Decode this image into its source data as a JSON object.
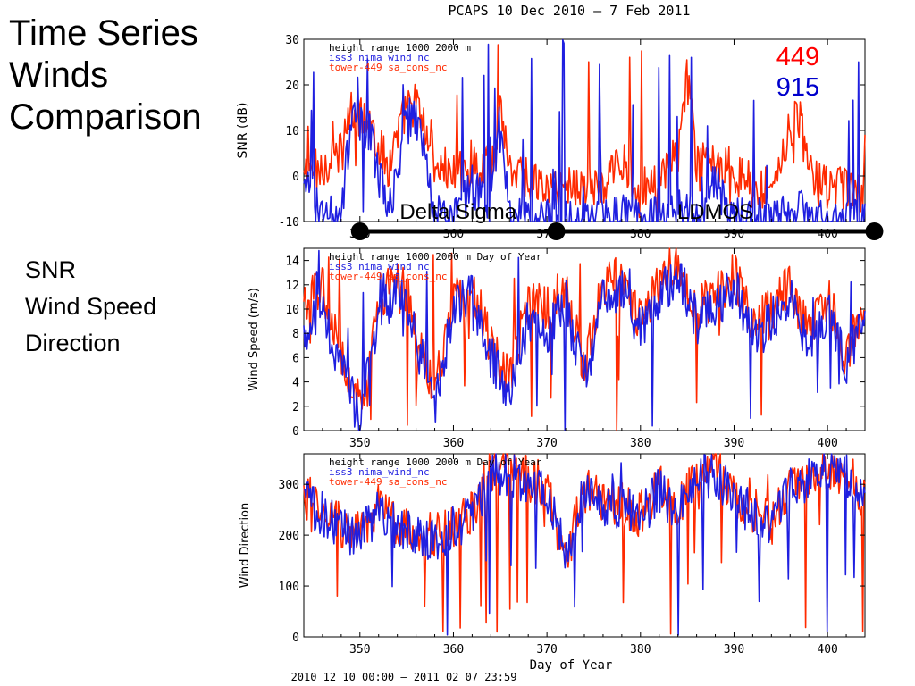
{
  "slide": {
    "title_lines": [
      "Time Series",
      "Winds",
      "Comparison"
    ],
    "side_lines": [
      "SNR",
      "Wind Speed",
      "Direction"
    ]
  },
  "figure": {
    "title": "PCAPS 10 Dec 2010 —  7 Feb 2011",
    "footer": "2010 12 10 00:00 — 2011 02 07 23:59",
    "system_labels": [
      {
        "text": "449",
        "color": "#ff0000"
      },
      {
        "text": "915",
        "color": "#0000cc"
      }
    ],
    "periods": [
      {
        "label": "Delta Sigma",
        "start": 350,
        "end": 371
      },
      {
        "label": "LDMOS",
        "start": 371,
        "end": 405
      }
    ]
  },
  "colors": {
    "series_449": "#ff2a00",
    "series_915": "#1f1fe0",
    "axis": "#000000"
  },
  "chart_data": [
    {
      "type": "line",
      "panel": "snr",
      "title": "PCAPS 10 Dec 2010 —  7 Feb 2011",
      "xlabel": "Day of Year",
      "ylabel": "SNR (dB)",
      "xlim": [
        344,
        404
      ],
      "ylim": [
        -10,
        30
      ],
      "xticks": [
        350,
        360,
        370,
        380,
        390,
        400
      ],
      "yticks": [
        -10,
        0,
        10,
        20,
        30
      ],
      "annotations": [
        "height range 1000 2000 m",
        "iss3 nima_wind_nc",
        "tower-449 sa_cons_nc"
      ],
      "series": [
        {
          "name": "tower-449 sa_cons_nc",
          "color": "#ff2a00",
          "x": [
            344,
            346,
            348,
            349,
            351,
            353,
            355,
            356,
            358,
            360,
            362,
            364,
            365,
            366,
            368,
            370,
            372,
            374,
            376,
            378,
            380,
            382,
            384,
            385,
            386,
            388,
            390,
            392,
            394,
            396,
            397,
            398,
            400,
            402,
            404
          ],
          "y": [
            0,
            2,
            5,
            14,
            12,
            2,
            15,
            16,
            3,
            0,
            3,
            1,
            16,
            2,
            0,
            -3,
            -2,
            -2,
            -3,
            4,
            -3,
            -2,
            5,
            22,
            2,
            4,
            1,
            -3,
            -2,
            10,
            13,
            1,
            -3,
            -3,
            -4
          ]
        },
        {
          "name": "iss3 nima_wind_nc",
          "color": "#1f1fe0",
          "x": [
            344,
            346,
            348,
            349,
            351,
            353,
            355,
            356,
            358,
            360,
            362,
            364,
            365,
            366,
            368,
            370,
            372,
            374,
            376,
            378,
            380,
            382,
            384,
            385,
            386,
            388,
            390,
            392,
            394,
            396,
            397,
            398,
            400,
            402,
            404
          ],
          "y": [
            -3,
            -8,
            -9,
            12,
            10,
            -9,
            12,
            14,
            -8,
            -10,
            -2,
            -9,
            14,
            -9,
            -10,
            -10,
            -9,
            -10,
            -10,
            -8,
            -10,
            -9,
            -7,
            -8,
            -9,
            -2,
            -9,
            -10,
            -9,
            -9,
            -8,
            -9,
            -10,
            -10,
            -10
          ]
        }
      ]
    },
    {
      "type": "line",
      "panel": "wind-speed",
      "xlabel": "Day of Year",
      "ylabel": "Wind Speed (m/s)",
      "xlim": [
        344,
        404
      ],
      "ylim": [
        0,
        15
      ],
      "xticks": [
        350,
        360,
        370,
        380,
        390,
        400
      ],
      "yticks": [
        0,
        2,
        4,
        6,
        8,
        10,
        12,
        14
      ],
      "annotations": [
        "height range 1000 2000 m Day of Year",
        "iss3 nima_wind_nc",
        "tower-449 sa_cons_nc"
      ],
      "series": [
        {
          "name": "tower-449 sa_cons_nc",
          "color": "#ff2a00",
          "x": [
            344,
            346,
            348,
            350,
            352,
            354,
            356,
            358,
            360,
            362,
            364,
            366,
            368,
            370,
            372,
            374,
            376,
            378,
            380,
            382,
            384,
            386,
            388,
            390,
            392,
            394,
            396,
            398,
            400,
            402,
            404
          ],
          "y": [
            10,
            12,
            6,
            2,
            10,
            13,
            9,
            3,
            11,
            12,
            7,
            4,
            11,
            10,
            12,
            5,
            12,
            13,
            9,
            12,
            14,
            10,
            11,
            13,
            9,
            10,
            12,
            8,
            11,
            6,
            11
          ]
        },
        {
          "name": "iss3 nima_wind_nc",
          "color": "#1f1fe0",
          "x": [
            344,
            346,
            348,
            350,
            352,
            354,
            356,
            358,
            360,
            362,
            364,
            366,
            368,
            370,
            372,
            374,
            376,
            378,
            380,
            382,
            384,
            386,
            388,
            390,
            392,
            394,
            396,
            398,
            400,
            402,
            404
          ],
          "y": [
            8,
            10,
            5,
            1,
            9,
            12,
            8,
            2,
            10,
            11,
            6,
            3,
            9,
            8,
            11,
            4,
            11,
            12,
            8,
            11,
            13,
            9,
            10,
            12,
            8,
            9,
            11,
            7,
            10,
            5,
            10
          ]
        }
      ]
    },
    {
      "type": "line",
      "panel": "wind-direction",
      "xlabel": "Day of Year",
      "ylabel": "Wind Direction",
      "xlim": [
        344,
        404
      ],
      "ylim": [
        0,
        360
      ],
      "xticks": [
        350,
        360,
        370,
        380,
        390,
        400
      ],
      "yticks": [
        0,
        100,
        200,
        300
      ],
      "annotations": [
        "height range 1000 2000 m Day of Year",
        "iss3 nima_wind_nc",
        "tower-449 sa_cons_nc"
      ],
      "series": [
        {
          "name": "tower-449 sa_cons_nc",
          "color": "#ff2a00",
          "x": [
            344,
            346,
            348,
            350,
            352,
            354,
            356,
            358,
            360,
            362,
            364,
            366,
            368,
            370,
            372,
            374,
            376,
            378,
            380,
            382,
            384,
            386,
            388,
            390,
            392,
            394,
            396,
            398,
            400,
            402,
            404
          ],
          "y": [
            280,
            250,
            220,
            200,
            260,
            220,
            210,
            200,
            220,
            250,
            330,
            330,
            310,
            300,
            150,
            290,
            270,
            260,
            240,
            300,
            250,
            320,
            330,
            280,
            250,
            220,
            300,
            320,
            330,
            320,
            280
          ]
        },
        {
          "name": "iss3 nima_wind_nc",
          "color": "#1f1fe0",
          "x": [
            344,
            346,
            348,
            350,
            352,
            354,
            356,
            358,
            360,
            362,
            364,
            366,
            368,
            370,
            372,
            374,
            376,
            378,
            380,
            382,
            384,
            386,
            388,
            390,
            392,
            394,
            396,
            398,
            400,
            402,
            404
          ],
          "y": [
            270,
            240,
            215,
            195,
            250,
            215,
            205,
            190,
            215,
            240,
            320,
            320,
            300,
            290,
            170,
            280,
            260,
            255,
            235,
            290,
            245,
            310,
            320,
            270,
            245,
            210,
            290,
            310,
            320,
            315,
            275
          ]
        }
      ]
    }
  ]
}
